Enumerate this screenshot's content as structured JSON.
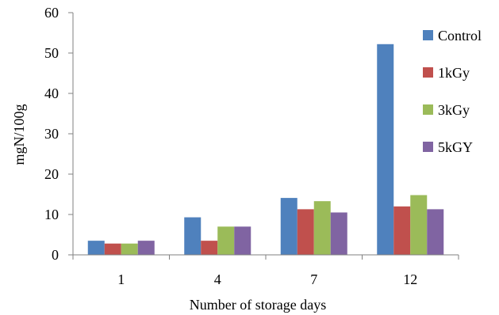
{
  "chart_data": {
    "type": "bar",
    "title": "",
    "xlabel": "Number of storage days",
    "ylabel": "mgN/100g",
    "categories": [
      "1",
      "4",
      "7",
      "12"
    ],
    "ylim": [
      0,
      60
    ],
    "yticks": [
      0,
      10,
      20,
      30,
      40,
      50,
      60
    ],
    "grid": false,
    "legend_position": "right",
    "series": [
      {
        "name": "Control",
        "color": "#4F81BD",
        "values": [
          3.5,
          9.3,
          14.1,
          52.2
        ]
      },
      {
        "name": "1kGy",
        "color": "#C0504D",
        "values": [
          2.8,
          3.5,
          11.3,
          12.0
        ]
      },
      {
        "name": "3kGy",
        "color": "#9BBB59",
        "values": [
          2.8,
          7.0,
          13.3,
          14.8
        ]
      },
      {
        "name": "5kGY",
        "color": "#8064A2",
        "values": [
          3.5,
          7.0,
          10.5,
          11.3
        ]
      }
    ]
  }
}
